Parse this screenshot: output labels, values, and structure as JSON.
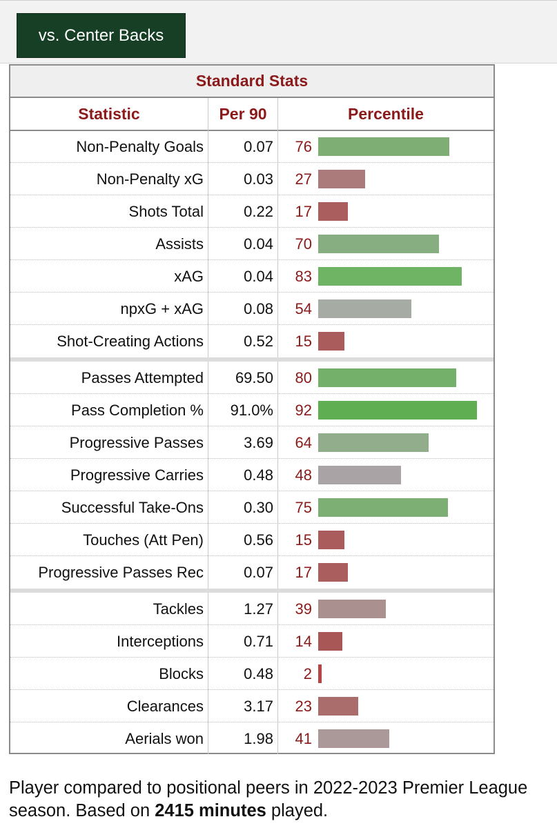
{
  "tab": {
    "label": "vs. Center Backs"
  },
  "table": {
    "caption": "Standard Stats",
    "headers": {
      "statistic": "Statistic",
      "per90": "Per 90",
      "percentile": "Percentile"
    },
    "groups": [
      [
        {
          "stat": "Non-Penalty Goals",
          "per90": "0.07",
          "percentile": 76,
          "percentile_label": "76",
          "bar_color": "#7fae74"
        },
        {
          "stat": "Non-Penalty xG",
          "per90": "0.03",
          "percentile": 27,
          "percentile_label": "27",
          "bar_color": "#ab7a7a"
        },
        {
          "stat": "Shots Total",
          "per90": "0.22",
          "percentile": 17,
          "percentile_label": "17",
          "bar_color": "#aa5e5e"
        },
        {
          "stat": "Assists",
          "per90": "0.04",
          "percentile": 70,
          "percentile_label": "70",
          "bar_color": "#87ae80"
        },
        {
          "stat": "xAG",
          "per90": "0.04",
          "percentile": 83,
          "percentile_label": "83",
          "bar_color": "#6fb364"
        },
        {
          "stat": "npxG + xAG",
          "per90": "0.08",
          "percentile": 54,
          "percentile_label": "54",
          "bar_color": "#a6aba4"
        },
        {
          "stat": "Shot-Creating Actions",
          "per90": "0.52",
          "percentile": 15,
          "percentile_label": "15",
          "bar_color": "#aa5b5b"
        }
      ],
      [
        {
          "stat": "Passes Attempted",
          "per90": "69.50",
          "percentile": 80,
          "percentile_label": "80",
          "bar_color": "#74b069"
        },
        {
          "stat": "Pass Completion %",
          "per90": "91.0%",
          "percentile": 92,
          "percentile_label": "92",
          "bar_color": "#5fae52"
        },
        {
          "stat": "Progressive Passes",
          "per90": "3.69",
          "percentile": 64,
          "percentile_label": "64",
          "bar_color": "#92ad8c"
        },
        {
          "stat": "Progressive Carries",
          "per90": "0.48",
          "percentile": 48,
          "percentile_label": "48",
          "bar_color": "#aaa3a5"
        },
        {
          "stat": "Successful Take-Ons",
          "per90": "0.30",
          "percentile": 75,
          "percentile_label": "75",
          "bar_color": "#7dae73"
        },
        {
          "stat": "Touches (Att Pen)",
          "per90": "0.56",
          "percentile": 15,
          "percentile_label": "15",
          "bar_color": "#aa5b5b"
        },
        {
          "stat": "Progressive Passes Rec",
          "per90": "0.07",
          "percentile": 17,
          "percentile_label": "17",
          "bar_color": "#aa5e5e"
        }
      ],
      [
        {
          "stat": "Tackles",
          "per90": "1.27",
          "percentile": 39,
          "percentile_label": "39",
          "bar_color": "#ab9090"
        },
        {
          "stat": "Interceptions",
          "per90": "0.71",
          "percentile": 14,
          "percentile_label": "14",
          "bar_color": "#a95656"
        },
        {
          "stat": "Blocks",
          "per90": "0.48",
          "percentile": 2,
          "percentile_label": "2",
          "bar_color": "#b54545"
        },
        {
          "stat": "Clearances",
          "per90": "3.17",
          "percentile": 23,
          "percentile_label": "23",
          "bar_color": "#ab6c6c"
        },
        {
          "stat": "Aerials won",
          "per90": "1.98",
          "percentile": 41,
          "percentile_label": "41",
          "bar_color": "#ab9898"
        }
      ]
    ]
  },
  "footer": {
    "text_before": "Player compared to positional peers in 2022-2023 Premier League season. Based on ",
    "minutes_bold": "2415 minutes",
    "text_after": " played."
  }
}
